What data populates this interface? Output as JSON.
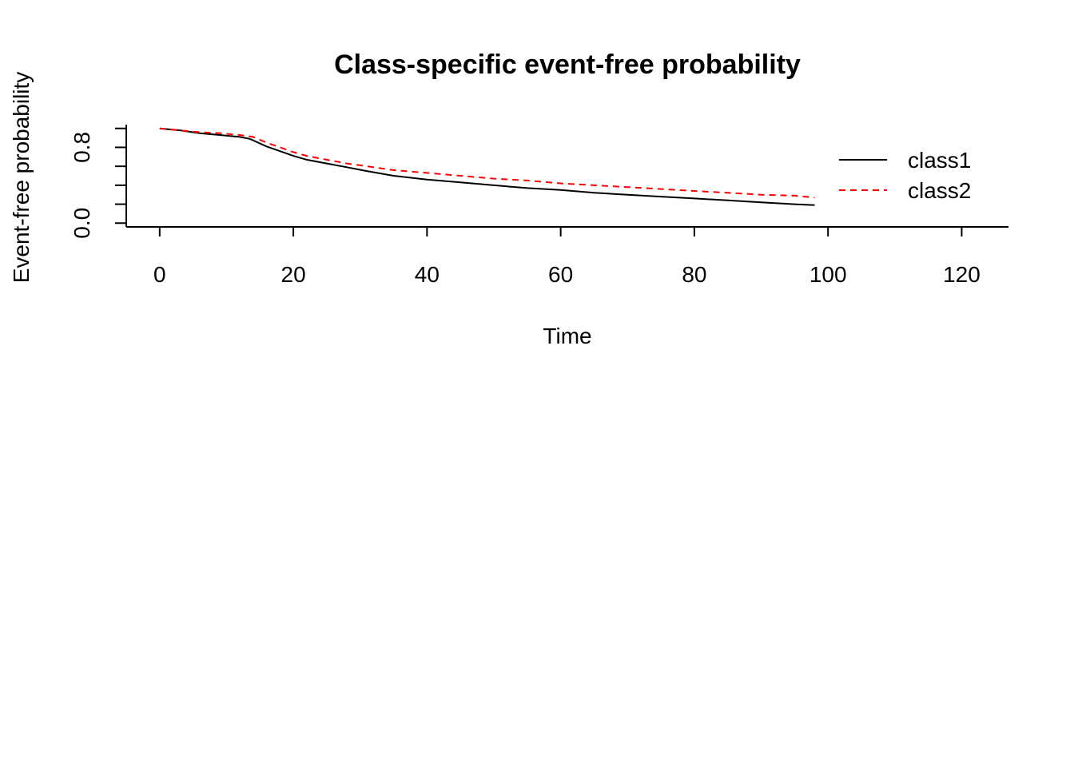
{
  "chart_data": {
    "type": "line",
    "title": "Class-specific event-free probability",
    "xlabel": "Time",
    "ylabel": "Event-free probability",
    "xlim": [
      -5,
      127
    ],
    "ylim": [
      -0.04,
      1.04
    ],
    "x_ticks": [
      0,
      20,
      40,
      60,
      80,
      100,
      120
    ],
    "x_tick_labels": [
      "0",
      "20",
      "40",
      "60",
      "80",
      "100",
      "120"
    ],
    "y_ticks": [
      0.0,
      0.2,
      0.4,
      0.6,
      0.8,
      1.0
    ],
    "y_tick_labels": [
      "0.0",
      "",
      "",
      "",
      "0.8",
      ""
    ],
    "legend_position": "right",
    "grid": false,
    "series": [
      {
        "name": "class1",
        "color": "#000000",
        "line_style": "solid",
        "x": [
          0,
          3,
          6,
          9,
          12,
          13.5,
          16,
          18,
          20,
          22,
          25,
          28,
          31,
          35,
          40,
          45,
          50,
          55,
          60,
          65,
          70,
          75,
          80,
          85,
          90,
          95,
          98
        ],
        "y": [
          1.0,
          0.98,
          0.95,
          0.93,
          0.91,
          0.89,
          0.81,
          0.76,
          0.71,
          0.67,
          0.63,
          0.59,
          0.55,
          0.5,
          0.46,
          0.43,
          0.4,
          0.37,
          0.35,
          0.32,
          0.3,
          0.28,
          0.26,
          0.24,
          0.22,
          0.2,
          0.19
        ]
      },
      {
        "name": "class2",
        "color": "#ff0000",
        "line_style": "dashed",
        "x": [
          0,
          3,
          6,
          9,
          12,
          14,
          16,
          18,
          20,
          22,
          25,
          28,
          31,
          35,
          40,
          45,
          50,
          55,
          60,
          65,
          70,
          75,
          80,
          85,
          90,
          95,
          98
        ],
        "y": [
          1.0,
          0.98,
          0.96,
          0.95,
          0.93,
          0.91,
          0.85,
          0.8,
          0.75,
          0.71,
          0.67,
          0.63,
          0.6,
          0.56,
          0.53,
          0.5,
          0.47,
          0.45,
          0.42,
          0.4,
          0.38,
          0.36,
          0.34,
          0.32,
          0.3,
          0.29,
          0.27
        ]
      }
    ]
  }
}
